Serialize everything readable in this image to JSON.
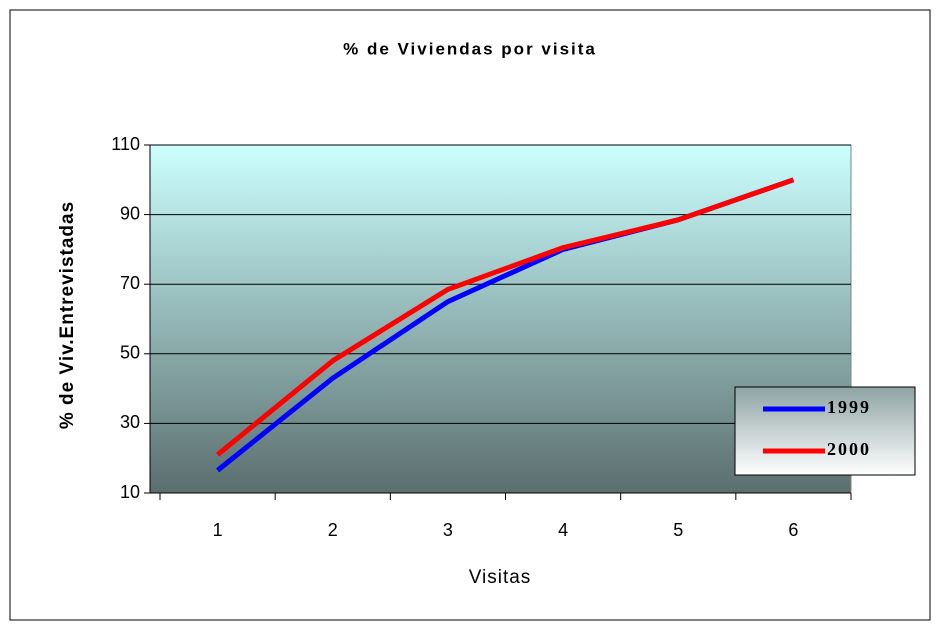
{
  "chart_data": {
    "type": "line",
    "title": "% de Viviendas por visita",
    "x_label": "Visitas",
    "y_label": "% de Viv.Entrevistadas",
    "categories": [
      "1",
      "2",
      "3",
      "4",
      "5",
      "6"
    ],
    "series": [
      {
        "name": "1999",
        "color": "#0000ff",
        "values": [
          16.5,
          43,
          65,
          80,
          88.5,
          100
        ]
      },
      {
        "name": "2000",
        "color": "#ff0000",
        "values": [
          21,
          48,
          68.5,
          80.5,
          88.5,
          100
        ]
      }
    ],
    "ylim": [
      10,
      110
    ],
    "yticks": [
      10,
      30,
      50,
      70,
      90,
      110
    ],
    "grid": true,
    "legend": "right"
  }
}
